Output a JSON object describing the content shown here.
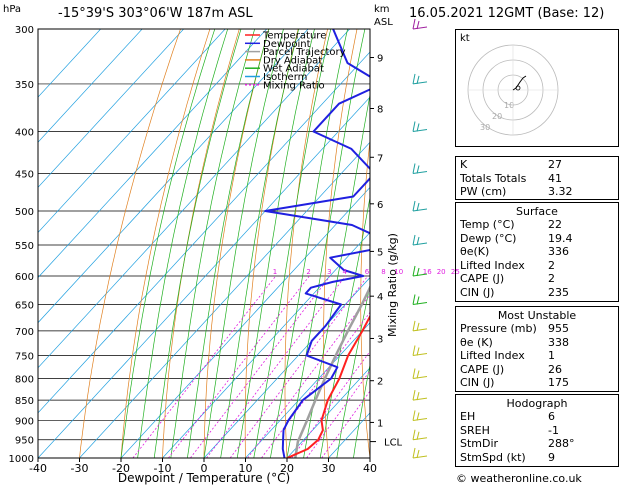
{
  "header": {
    "location": "-15°39'S  303°06'W  187m  ASL",
    "datetime": "16.05.2021  12GMT  (Base: 12)",
    "pressure_unit": "hPa",
    "height_unit": "km",
    "height_ref": "ASL"
  },
  "chart_data": {
    "type": "line",
    "subtype": "skew-T log-P",
    "xlabel": "Dewpoint / Temperature (°C)",
    "ylabel_right": "Mixing Ratio (g/kg)",
    "x_ticks": [
      -40,
      -30,
      -20,
      -10,
      0,
      10,
      20,
      30,
      40
    ],
    "pressure_ticks": [
      300,
      350,
      400,
      450,
      500,
      550,
      600,
      650,
      700,
      750,
      800,
      850,
      900,
      950,
      1000
    ],
    "ylim": [
      1000,
      300
    ],
    "xlim": [
      -40,
      40
    ],
    "km_ticks": [
      "1",
      "2",
      "3",
      "4",
      "5",
      "6",
      "7",
      "8",
      "9"
    ],
    "km_tick_pressures": [
      905,
      805,
      715,
      635,
      560,
      490,
      430,
      375,
      325
    ],
    "lcl_label": "LCL",
    "lcl_pressure": 955,
    "mixing_ratio_labels": [
      "1",
      "2",
      "3",
      "4",
      "6",
      "8",
      "10",
      "16",
      "20",
      "25"
    ],
    "mixing_ratio_values": [
      1,
      2,
      3,
      4,
      6,
      8,
      10,
      16,
      20,
      25
    ],
    "legend": [
      "Temperature",
      "Dewpoint",
      "Parcel Trajectory",
      "Dry Adiabat",
      "Wet Adiabat",
      "Isotherm",
      "Mixing Ratio"
    ],
    "colors": {
      "temperature": "#ff2020",
      "dewpoint": "#2020e0",
      "parcel": "#a0a0a0",
      "dry_adiabat": "#e08020",
      "wet_adiabat": "#20b020",
      "isotherm": "#20a0e0",
      "mixing_ratio": "#e020e0"
    },
    "temperature": {
      "p": [
        1000,
        975,
        950,
        925,
        900,
        850,
        800,
        750,
        700,
        650,
        600,
        550,
        500,
        450,
        400,
        350,
        300
      ],
      "t": [
        20,
        23,
        23.5,
        22.5,
        20,
        17,
        15,
        12,
        10,
        7.5,
        6,
        2,
        -2,
        -7,
        -13,
        -21,
        -31
      ]
    },
    "dewpoint": {
      "p": [
        1000,
        975,
        950,
        925,
        900,
        850,
        800,
        775,
        750,
        720,
        690,
        650,
        630,
        620,
        610,
        600,
        590,
        570,
        550,
        520,
        500,
        480,
        450,
        420,
        400,
        370,
        350,
        330,
        300
      ],
      "t": [
        19.4,
        17,
        15,
        13,
        12,
        11,
        13,
        12,
        2,
        0,
        0,
        -1,
        -12,
        -12,
        -8,
        -2,
        -8,
        -14,
        -1,
        -16,
        -40,
        -22,
        -22,
        -33,
        -46,
        -46,
        -40,
        -53,
        -64
      ]
    },
    "parcel": {
      "p": [
        1000,
        955,
        900,
        850,
        800,
        750,
        700,
        650,
        600,
        550,
        500,
        450,
        400,
        350,
        300
      ],
      "t": [
        22,
        19,
        16.5,
        14,
        11.5,
        9,
        6.5,
        4,
        1,
        -2,
        -6,
        -10,
        -14.5,
        -20,
        -27
      ]
    }
  },
  "hodograph": {
    "unit": "kt",
    "rings": [
      "10",
      "20",
      "30"
    ]
  },
  "indices": {
    "rows": [
      {
        "label": "K",
        "value": "27"
      },
      {
        "label": "Totals Totals",
        "value": "41"
      },
      {
        "label": "PW (cm)",
        "value": "3.32"
      }
    ]
  },
  "surface": {
    "title": "Surface",
    "rows": [
      {
        "label": "Temp (°C)",
        "value": "22"
      },
      {
        "label": "Dewp (°C)",
        "value": "19.4"
      },
      {
        "label": "θe(K)",
        "value": "336"
      },
      {
        "label": "Lifted Index",
        "value": "2"
      },
      {
        "label": "CAPE (J)",
        "value": "2"
      },
      {
        "label": "CIN (J)",
        "value": "235"
      }
    ]
  },
  "most_unstable": {
    "title": "Most Unstable",
    "rows": [
      {
        "label": "Pressure (mb)",
        "value": "955"
      },
      {
        "label": "θe (K)",
        "value": "338"
      },
      {
        "label": "Lifted Index",
        "value": "1"
      },
      {
        "label": "CAPE (J)",
        "value": "26"
      },
      {
        "label": "CIN (J)",
        "value": "175"
      }
    ]
  },
  "hodograph_box": {
    "title": "Hodograph",
    "rows": [
      {
        "label": "EH",
        "value": "6"
      },
      {
        "label": "SREH",
        "value": "-1"
      },
      {
        "label": "StmDir",
        "value": "288°"
      },
      {
        "label": "StmSpd (kt)",
        "value": "9"
      }
    ]
  },
  "copyright": "© weatheronline.co.uk"
}
